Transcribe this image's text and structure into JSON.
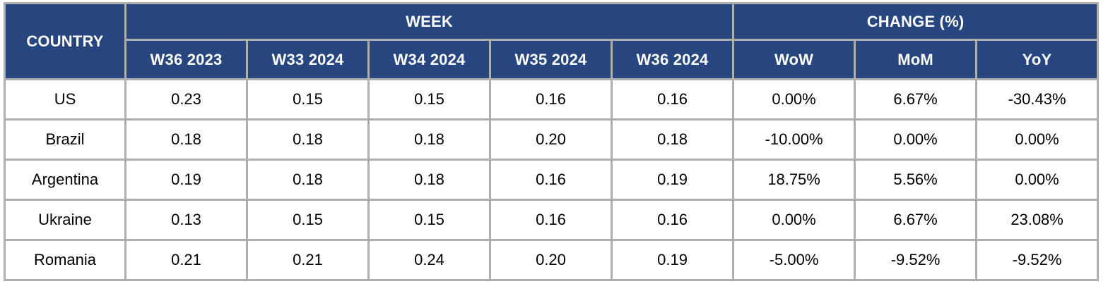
{
  "colors": {
    "header_background": "#27457e",
    "header_text": "#ffffff",
    "body_text": "#000000",
    "border": "#aeaeae",
    "body_background": "#ffffff"
  },
  "chart_data": {
    "type": "table",
    "title": "",
    "column_groups": [
      {
        "label": "COUNTRY",
        "colspan": 1,
        "rowspan": 2
      },
      {
        "label": "WEEK",
        "colspan": 5,
        "rowspan": 1
      },
      {
        "label": "CHANGE (%)",
        "colspan": 3,
        "rowspan": 1
      }
    ],
    "columns": [
      "W36 2023",
      "W33 2024",
      "W34 2024",
      "W35 2024",
      "W36 2024",
      "WoW",
      "MoM",
      "YoY"
    ],
    "rows": [
      {
        "country": "US",
        "values": [
          "0.23",
          "0.15",
          "0.15",
          "0.16",
          "0.16",
          "0.00%",
          "6.67%",
          "-30.43%"
        ]
      },
      {
        "country": "Brazil",
        "values": [
          "0.18",
          "0.18",
          "0.18",
          "0.20",
          "0.18",
          "-10.00%",
          "0.00%",
          "0.00%"
        ]
      },
      {
        "country": "Argentina",
        "values": [
          "0.19",
          "0.18",
          "0.18",
          "0.16",
          "0.19",
          "18.75%",
          "5.56%",
          "0.00%"
        ]
      },
      {
        "country": "Ukraine",
        "values": [
          "0.13",
          "0.15",
          "0.15",
          "0.16",
          "0.16",
          "0.00%",
          "6.67%",
          "23.08%"
        ]
      },
      {
        "country": "Romania",
        "values": [
          "0.21",
          "0.21",
          "0.24",
          "0.20",
          "0.19",
          "-5.00%",
          "-9.52%",
          "-9.52%"
        ]
      }
    ]
  }
}
